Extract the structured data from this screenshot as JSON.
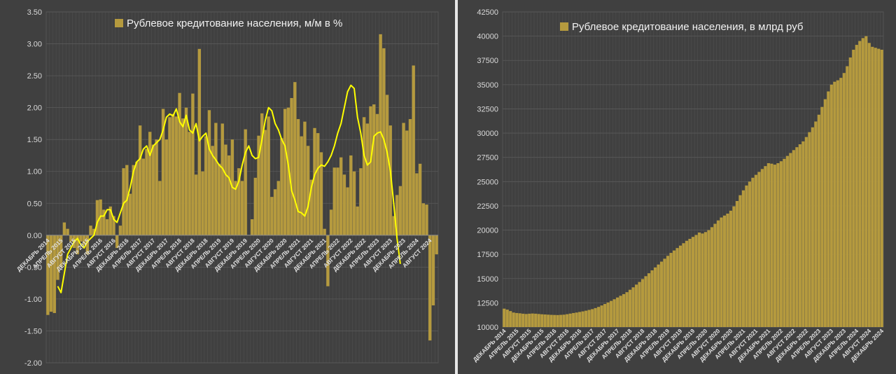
{
  "chart_data": [
    {
      "type": "bar+line",
      "title": "Рублевое кредитование населения, м/м в %",
      "ylim": [
        -2.0,
        3.5
      ],
      "ystep": 0.5,
      "grid": true,
      "legend": "top-center",
      "legend_entries": [
        "Рублевое кредитование населения, м/м в %"
      ],
      "bar_color": "#b59a3e",
      "line_color": "#ffff00",
      "x_tick_labels": [
        "ДЕКАБРЬ 2014",
        "АПРЕЛЬ 2015",
        "АВГУСТ 2015",
        "ДЕКАБРЬ 2015",
        "АПРЕЛЬ 2016",
        "АВГУСТ 2016",
        "ДЕКАБРЬ 2016",
        "АПРЕЛЬ 2017",
        "АВГУСТ 2017",
        "ДЕКАБРЬ 2017",
        "АПРЕЛЬ 2018",
        "АВГУСТ 2018",
        "ДЕКАБРЬ 2018",
        "АПРЕЛЬ 2019",
        "АВГУСТ 2019",
        "ДЕКАБРЬ 2019",
        "АПРЕЛЬ 2020",
        "АВГУСТ 2020",
        "ДЕКАБРЬ 2020",
        "АПРЕЛЬ 2021",
        "АВГУСТ 2021",
        "ДЕКАБРЬ 2021",
        "АПРЕЛЬ 2022",
        "АВГУСТ 2022",
        "ДЕКАБРЬ 2022",
        "АПРЕЛЬ 2023",
        "АВГУСТ 2023",
        "ДЕКАБРЬ 2023",
        "АПРЕЛЬ 2024",
        "АВГУСТ 2024",
        "ДЕКАБРЬ 2024"
      ],
      "x_tick_every": 4,
      "values": [
        -1.25,
        -1.2,
        -1.22,
        -0.7,
        -0.5,
        0.2,
        0.1,
        -0.1,
        -0.2,
        -0.3,
        -0.1,
        -0.15,
        -0.3,
        0.15,
        0.1,
        0.55,
        0.56,
        0.4,
        0.25,
        0.45,
        0.3,
        -0.2,
        0.15,
        1.05,
        1.1,
        0.65,
        1.1,
        1.15,
        1.72,
        1.2,
        1.35,
        1.62,
        1.42,
        1.5,
        0.85,
        1.98,
        1.5,
        1.85,
        1.9,
        1.86,
        2.23,
        1.83,
        2.0,
        1.62,
        2.22,
        0.95,
        2.92,
        1.0,
        1.55,
        1.96,
        1.4,
        1.76,
        1.12,
        1.75,
        1.42,
        1.25,
        1.5,
        0.85,
        1.05,
        0.85,
        1.66,
        0.0,
        0.25,
        0.9,
        1.56,
        1.91,
        1.65,
        1.86,
        0.6,
        0.72,
        0.85,
        1.52,
        1.98,
        2.0,
        2.15,
        2.4,
        1.82,
        1.55,
        1.78,
        1.4,
        0.87,
        1.68,
        1.6,
        1.3,
        0.1,
        -0.8,
        0.4,
        1.06,
        1.06,
        1.22,
        0.95,
        0.75,
        1.25,
        1.0,
        0.45,
        1.05,
        1.85,
        1.75,
        2.02,
        2.05,
        1.9,
        3.15,
        2.93,
        2.2,
        1.72,
        0.3,
        0.63,
        0.77,
        1.76,
        1.64,
        1.82,
        2.66,
        0.97,
        1.12,
        0.5,
        0.48,
        -1.65,
        -1.1,
        -0.3
      ],
      "series": [
        {
          "name": "",
          "values": [
            null,
            null,
            null,
            -0.8,
            -0.9,
            -0.6,
            -0.3,
            -0.2,
            -0.1,
            -0.05,
            -0.15,
            -0.2,
            -0.1,
            -0.05,
            0.0,
            0.2,
            0.3,
            0.3,
            0.4,
            0.4,
            0.25,
            0.2,
            0.35,
            0.5,
            0.55,
            0.75,
            1.0,
            1.15,
            1.2,
            1.35,
            1.4,
            1.25,
            1.4,
            1.45,
            1.5,
            1.65,
            1.85,
            1.9,
            1.87,
            1.98,
            1.78,
            1.7,
            1.88,
            1.65,
            1.6,
            1.75,
            1.48,
            1.55,
            1.6,
            1.35,
            1.25,
            1.18,
            1.1,
            1.05,
            0.95,
            0.9,
            0.75,
            0.72,
            0.85,
            1.1,
            1.3,
            1.4,
            1.25,
            1.2,
            1.22,
            1.5,
            1.8,
            2.0,
            1.95,
            1.75,
            1.65,
            1.5,
            1.4,
            1.1,
            0.7,
            0.55,
            0.37,
            0.35,
            0.3,
            0.45,
            0.75,
            0.95,
            1.05,
            1.1,
            1.08,
            1.15,
            1.25,
            1.4,
            1.6,
            1.75,
            2.0,
            2.25,
            2.35,
            2.3,
            1.85,
            1.6,
            1.25,
            1.1,
            1.15,
            1.55,
            1.6,
            1.62,
            1.5,
            1.3,
            1.0,
            0.5,
            -0.05,
            -0.45,
            null,
            null,
            null,
            null,
            null,
            null,
            null,
            null,
            null,
            null,
            null,
            null,
            null
          ]
        }
      ]
    },
    {
      "type": "bar",
      "title": "Рублевое кредитование населения, в млрд руб",
      "ylim": [
        10000,
        42500
      ],
      "ystep": 2500,
      "grid": true,
      "legend": "top-center",
      "legend_entries": [
        "Рублевое кредитование населения, в млрд руб"
      ],
      "bar_color": "#b59a3e",
      "x_tick_labels": [
        "ДЕКАБРЬ 2014",
        "АПРЕЛЬ 2015",
        "АВГУСТ 2015",
        "ДЕКАБРЬ 2015",
        "АПРЕЛЬ 2016",
        "АВГУСТ 2016",
        "ДЕКАБРЬ 2016",
        "АПРЕЛЬ 2017",
        "АВГУСТ 2017",
        "ДЕКАБРЬ 2017",
        "АПРЕЛЬ 2018",
        "АВГУСТ 2018",
        "ДЕКАБРЬ 2018",
        "АПРЕЛЬ 2019",
        "АВГУСТ 2019",
        "ДЕКАБРЬ 2019",
        "АПРЕЛЬ 2020",
        "АВГУСТ 2020",
        "ДЕКАБРЬ 2020",
        "АПРЕЛЬ 2021",
        "АВГУСТ 2021",
        "ДЕКАБРЬ 2021",
        "АПРЕЛЬ 2022",
        "АВГУСТ 2022",
        "ДЕКАБРЬ 2022",
        "АПРЕЛЬ 2023",
        "АВГУСТ 2023",
        "ДЕКАБРЬ 2023",
        "АПРЕЛЬ 2024",
        "АВГУСТ 2024",
        "ДЕКАБРЬ 2024"
      ],
      "x_tick_every": 4,
      "values": [
        11900,
        11800,
        11650,
        11500,
        11450,
        11420,
        11380,
        11350,
        11380,
        11400,
        11380,
        11350,
        11320,
        11300,
        11280,
        11260,
        11250,
        11240,
        11260,
        11280,
        11330,
        11390,
        11450,
        11500,
        11560,
        11620,
        11690,
        11770,
        11850,
        11960,
        12080,
        12230,
        12380,
        12540,
        12700,
        12870,
        13050,
        13230,
        13400,
        13600,
        13850,
        14100,
        14380,
        14650,
        14950,
        15250,
        15550,
        15850,
        16150,
        16450,
        16750,
        17050,
        17350,
        17650,
        17900,
        18150,
        18400,
        18650,
        18900,
        19100,
        19300,
        19500,
        19750,
        19650,
        19800,
        20000,
        20300,
        20650,
        21000,
        21300,
        21500,
        21700,
        22000,
        22450,
        23000,
        23600,
        24100,
        24600,
        25000,
        25400,
        25700,
        26000,
        26300,
        26600,
        26900,
        26850,
        26750,
        26900,
        27100,
        27350,
        27650,
        27950,
        28250,
        28550,
        28850,
        29150,
        29600,
        30100,
        30600,
        31200,
        31900,
        32700,
        33500,
        34300,
        35000,
        35300,
        35450,
        35700,
        36200,
        36900,
        37800,
        38600,
        39100,
        39500,
        39800,
        40000,
        39300,
        38900,
        38800,
        38700,
        38600
      ]
    }
  ]
}
